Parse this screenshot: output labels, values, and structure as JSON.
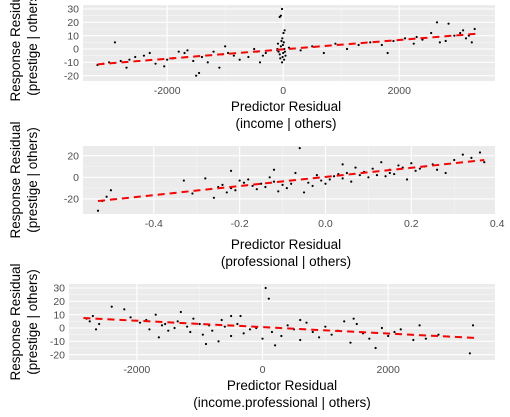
{
  "chart_data": [
    {
      "type": "scatter",
      "xlabel": "Predictor Residual",
      "xlabel2": "(income | others)",
      "ylabel": "Response Residual",
      "ylabel2": "(prestige | others)",
      "xlim": [
        -3450,
        3650
      ],
      "ylim": [
        -24,
        33
      ],
      "xticks": [
        -2000,
        0,
        2000
      ],
      "xtick_labels": [
        "-2000",
        "0",
        "2000"
      ],
      "yticks": [
        -20,
        -10,
        0,
        10,
        20,
        30
      ],
      "ytick_labels": [
        "-20",
        "-10",
        "0",
        "10",
        "20",
        "30"
      ],
      "grid": true,
      "panel_background": "#ebebeb",
      "point_color": "#000000",
      "fit_line": {
        "color": "#ff0000",
        "style": "dashed",
        "x": [
          -3200,
          3350
        ],
        "y": [
          -11.5,
          11.5
        ]
      },
      "points": [
        [
          -3200,
          -12
        ],
        [
          -3000,
          -10
        ],
        [
          -2800,
          -9
        ],
        [
          -2650,
          -8
        ],
        [
          -2550,
          -6
        ],
        [
          -2400,
          -5
        ],
        [
          -2300,
          -3
        ],
        [
          -2200,
          -11
        ],
        [
          -2050,
          -13
        ],
        [
          -2000,
          -8
        ],
        [
          -1900,
          -7
        ],
        [
          -1800,
          -2
        ],
        [
          -1700,
          -3
        ],
        [
          -1650,
          -1
        ],
        [
          -1550,
          -9
        ],
        [
          -1500,
          -20
        ],
        [
          -1450,
          -18
        ],
        [
          -1400,
          -6
        ],
        [
          -1300,
          -10
        ],
        [
          -1200,
          -2
        ],
        [
          -1100,
          -14
        ],
        [
          -1050,
          -4
        ],
        [
          -1000,
          2
        ],
        [
          -950,
          -3
        ],
        [
          -850,
          -5
        ],
        [
          -750,
          -8
        ],
        [
          -600,
          -6
        ],
        [
          -500,
          0
        ],
        [
          -450,
          -2
        ],
        [
          -400,
          -10
        ],
        [
          -350,
          -5
        ],
        [
          -300,
          -3
        ],
        [
          -100,
          0
        ],
        [
          -100,
          -1
        ],
        [
          -90,
          4
        ],
        [
          -80,
          -2
        ],
        [
          -60,
          -4
        ],
        [
          -50,
          -7
        ],
        [
          -40,
          2
        ],
        [
          -30,
          6
        ],
        [
          -20,
          -10
        ],
        [
          -15,
          8
        ],
        [
          -10,
          -6
        ],
        [
          -5,
          3
        ],
        [
          0,
          -3
        ],
        [
          5,
          12
        ],
        [
          10,
          5
        ],
        [
          15,
          -8
        ],
        [
          20,
          0
        ],
        [
          25,
          14
        ],
        [
          30,
          -2
        ],
        [
          40,
          -5
        ],
        [
          -20,
          30
        ],
        [
          -40,
          25
        ],
        [
          -60,
          24
        ],
        [
          100,
          1
        ],
        [
          300,
          -1
        ],
        [
          500,
          2
        ],
        [
          700,
          -3
        ],
        [
          900,
          4
        ],
        [
          1100,
          0
        ],
        [
          1300,
          3
        ],
        [
          1500,
          5
        ],
        [
          1700,
          3
        ],
        [
          1800,
          -3
        ],
        [
          1900,
          6
        ],
        [
          2100,
          8
        ],
        [
          2250,
          4
        ],
        [
          2400,
          7
        ],
        [
          2550,
          12
        ],
        [
          2650,
          20
        ],
        [
          2700,
          5
        ],
        [
          2850,
          19
        ],
        [
          2950,
          10
        ],
        [
          3050,
          12
        ],
        [
          3100,
          14
        ],
        [
          3200,
          10
        ],
        [
          3250,
          5
        ],
        [
          3300,
          15
        ],
        [
          3150,
          8
        ],
        [
          -2900,
          5
        ],
        [
          -3100,
          -11
        ],
        [
          -2700,
          -14
        ],
        [
          2300,
          9
        ],
        [
          2800,
          6
        ]
      ]
    },
    {
      "type": "scatter",
      "xlabel": "Predictor Residual",
      "xlabel2": "(professional | others)",
      "ylabel": "Response Residual",
      "ylabel2": "(prestige | others)",
      "xlim": [
        -0.565,
        0.395
      ],
      "ylim": [
        -34,
        29
      ],
      "xticks": [
        -0.4,
        -0.2,
        0.0,
        0.2,
        0.4
      ],
      "xtick_labels": [
        "-0.4",
        "-0.2",
        "0.0",
        "0.2",
        "0.4"
      ],
      "yticks": [
        -20,
        0,
        20
      ],
      "ytick_labels": [
        "-20",
        "0",
        "20"
      ],
      "grid": true,
      "panel_background": "#ebebeb",
      "point_color": "#000000",
      "fit_line": {
        "color": "#ff0000",
        "style": "dashed",
        "x": [
          -0.53,
          0.37
        ],
        "y": [
          -22,
          16
        ]
      },
      "points": [
        [
          -0.53,
          -31
        ],
        [
          -0.52,
          -22
        ],
        [
          -0.51,
          -18
        ],
        [
          -0.5,
          -12
        ],
        [
          -0.33,
          -3
        ],
        [
          -0.31,
          -15
        ],
        [
          -0.26,
          -19
        ],
        [
          -0.25,
          -9
        ],
        [
          -0.24,
          -7
        ],
        [
          -0.23,
          -14
        ],
        [
          -0.22,
          -10
        ],
        [
          -0.21,
          -12
        ],
        [
          -0.2,
          -3
        ],
        [
          -0.19,
          -5
        ],
        [
          -0.18,
          -2
        ],
        [
          -0.17,
          -8
        ],
        [
          -0.16,
          -11
        ],
        [
          -0.15,
          -6
        ],
        [
          -0.14,
          -9
        ],
        [
          -0.13,
          0
        ],
        [
          -0.12,
          -4
        ],
        [
          -0.11,
          -13
        ],
        [
          -0.1,
          -7
        ],
        [
          -0.09,
          -10
        ],
        [
          -0.08,
          -6
        ],
        [
          -0.07,
          4
        ],
        [
          -0.06,
          27
        ],
        [
          -0.05,
          -14
        ],
        [
          -0.04,
          -5
        ],
        [
          -0.03,
          -8
        ],
        [
          -0.02,
          2
        ],
        [
          -0.01,
          -3
        ],
        [
          0.0,
          -6
        ],
        [
          0.01,
          -2
        ],
        [
          0.02,
          1
        ],
        [
          0.03,
          3
        ],
        [
          0.04,
          -1
        ],
        [
          0.05,
          4
        ],
        [
          0.06,
          -4
        ],
        [
          0.07,
          9
        ],
        [
          0.08,
          2
        ],
        [
          0.09,
          5
        ],
        [
          0.1,
          0
        ],
        [
          0.11,
          8
        ],
        [
          0.12,
          2
        ],
        [
          0.13,
          14
        ],
        [
          0.14,
          1
        ],
        [
          0.15,
          7
        ],
        [
          0.16,
          3
        ],
        [
          0.17,
          11
        ],
        [
          0.18,
          9
        ],
        [
          0.19,
          -2
        ],
        [
          0.2,
          13
        ],
        [
          0.21,
          6
        ],
        [
          0.22,
          8
        ],
        [
          0.23,
          10
        ],
        [
          0.25,
          12
        ],
        [
          0.26,
          7
        ],
        [
          0.28,
          4
        ],
        [
          0.3,
          16
        ],
        [
          0.32,
          21
        ],
        [
          0.34,
          18
        ],
        [
          0.36,
          23
        ],
        [
          0.37,
          14
        ],
        [
          -0.28,
          -1
        ],
        [
          -0.22,
          6
        ],
        [
          -0.12,
          7
        ],
        [
          0.04,
          12
        ],
        [
          0.15,
          4
        ]
      ]
    },
    {
      "type": "scatter",
      "xlabel": "Predictor Residual",
      "xlabel2": "(income.professional | others)",
      "ylabel": "Response Residual",
      "ylabel2": "(prestige | others)",
      "xlim": [
        -3080,
        3700
      ],
      "ylim": [
        -24,
        33
      ],
      "xticks": [
        -2000,
        0,
        2000
      ],
      "xtick_labels": [
        "-2000",
        "0",
        "2000"
      ],
      "yticks": [
        -20,
        -10,
        0,
        10,
        20,
        30
      ],
      "ytick_labels": [
        "-20",
        "-10",
        "0",
        "10",
        "20",
        "30"
      ],
      "grid": true,
      "panel_background": "#ebebeb",
      "point_color": "#000000",
      "fit_line": {
        "color": "#ff0000",
        "style": "dashed",
        "x": [
          -2850,
          3400
        ],
        "y": [
          7.5,
          -7.5
        ]
      },
      "points": [
        [
          -2800,
          7
        ],
        [
          -2750,
          5
        ],
        [
          -2700,
          9
        ],
        [
          -2650,
          -1
        ],
        [
          -2600,
          3
        ],
        [
          -2200,
          14
        ],
        [
          -2100,
          8
        ],
        [
          -1950,
          4
        ],
        [
          -1850,
          6
        ],
        [
          -1800,
          -1
        ],
        [
          -1700,
          10
        ],
        [
          -1600,
          2
        ],
        [
          -1550,
          3
        ],
        [
          -1500,
          -2
        ],
        [
          -1400,
          0
        ],
        [
          -1350,
          5
        ],
        [
          -1300,
          12
        ],
        [
          -1200,
          1
        ],
        [
          -1150,
          -3
        ],
        [
          -1100,
          7
        ],
        [
          -1000,
          3
        ],
        [
          -950,
          -5
        ],
        [
          -900,
          -12
        ],
        [
          -850,
          2
        ],
        [
          -800,
          -2
        ],
        [
          -700,
          -10
        ],
        [
          -650,
          6
        ],
        [
          -600,
          1
        ],
        [
          -500,
          -6
        ],
        [
          -400,
          3
        ],
        [
          -350,
          9
        ],
        [
          -300,
          -4
        ],
        [
          -200,
          -1
        ],
        [
          -100,
          0
        ],
        [
          0,
          -8
        ],
        [
          50,
          30
        ],
        [
          100,
          22
        ],
        [
          150,
          -3
        ],
        [
          200,
          -13
        ],
        [
          300,
          -6
        ],
        [
          400,
          2
        ],
        [
          500,
          -1
        ],
        [
          600,
          -9
        ],
        [
          700,
          4
        ],
        [
          800,
          -3
        ],
        [
          900,
          -7
        ],
        [
          1000,
          1
        ],
        [
          1100,
          -5
        ],
        [
          1200,
          -2
        ],
        [
          1300,
          5
        ],
        [
          1400,
          -11
        ],
        [
          1500,
          3
        ],
        [
          1600,
          -4
        ],
        [
          1700,
          -8
        ],
        [
          1800,
          -15
        ],
        [
          1900,
          0
        ],
        [
          2000,
          -6
        ],
        [
          2100,
          -3
        ],
        [
          2200,
          -1
        ],
        [
          2400,
          -9
        ],
        [
          2500,
          2
        ],
        [
          2600,
          -8
        ],
        [
          2800,
          -5
        ],
        [
          3300,
          -19
        ],
        [
          3350,
          2
        ],
        [
          -2400,
          16
        ],
        [
          -1650,
          -7
        ],
        [
          -500,
          9
        ],
        [
          600,
          6
        ],
        [
          1450,
          7
        ]
      ]
    }
  ]
}
